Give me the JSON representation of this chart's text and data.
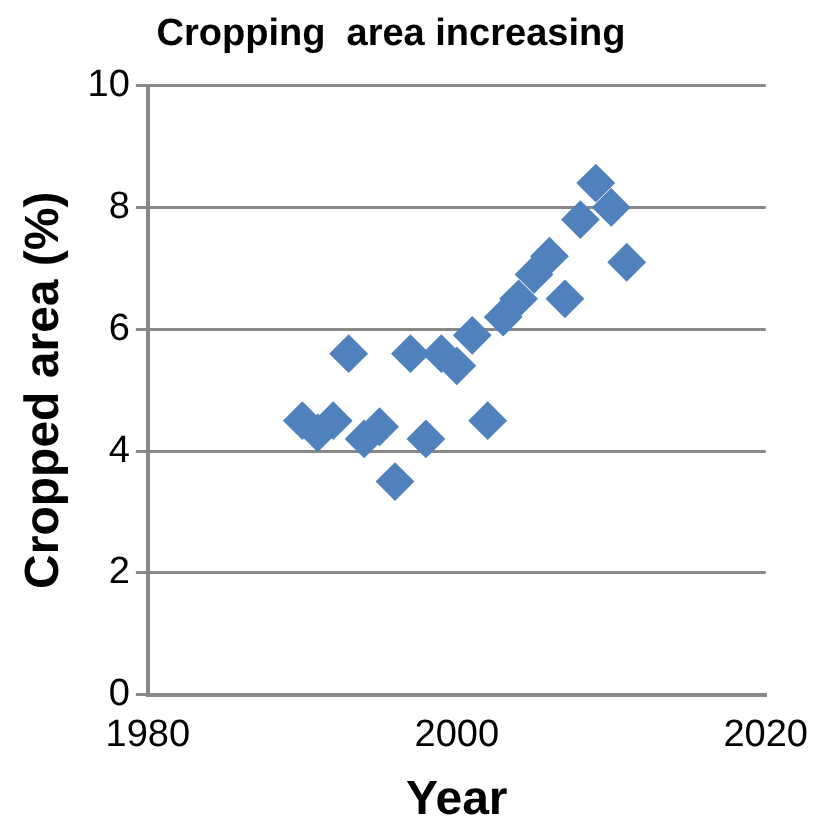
{
  "chart_data": {
    "type": "scatter",
    "title": "Cropping  area increasing",
    "xlabel": "Year",
    "ylabel": "Cropped area (%)",
    "x": [
      1990,
      1991,
      1992,
      1993,
      1994,
      1995,
      1996,
      1997,
      1998,
      1999,
      2000,
      2001,
      2002,
      2003,
      2004,
      2005,
      2006,
      2007,
      2008,
      2009,
      2010,
      2011
    ],
    "values": [
      4.5,
      4.3,
      4.5,
      5.6,
      4.2,
      4.4,
      3.5,
      5.6,
      4.2,
      5.6,
      5.4,
      5.9,
      4.5,
      6.2,
      6.5,
      6.9,
      7.2,
      6.5,
      7.8,
      8.4,
      8.0,
      7.1
    ],
    "color": "#4f81bd",
    "marker": "diamond",
    "xlim": [
      1980,
      2020
    ],
    "xticks": [
      1980,
      2000,
      2020
    ],
    "ylim": [
      0,
      10
    ],
    "yticks": [
      0,
      2,
      4,
      6,
      8,
      10
    ],
    "grid": "y",
    "legend": false
  }
}
